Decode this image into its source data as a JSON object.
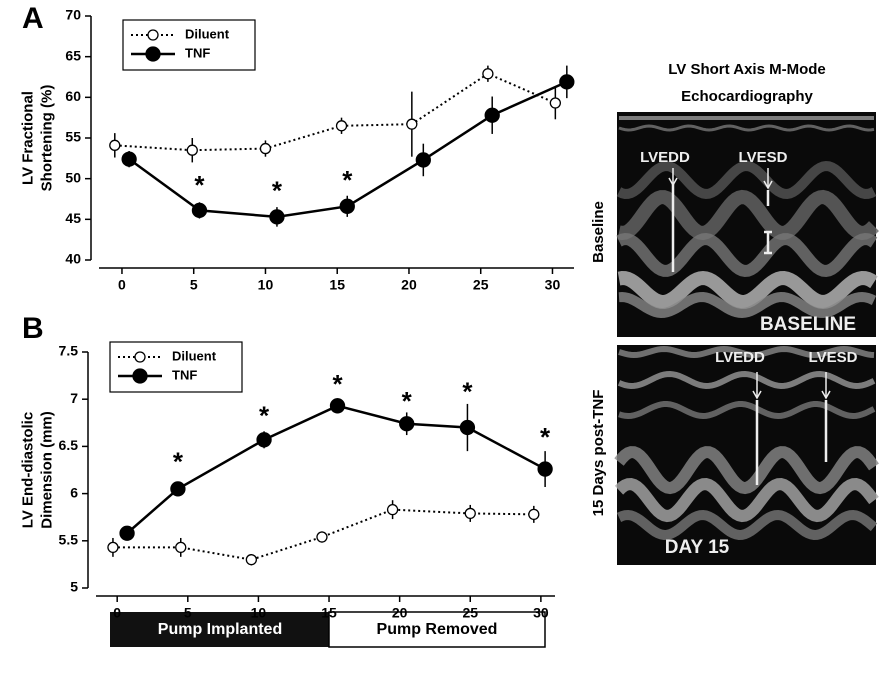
{
  "chart_data": [
    {
      "type": "line",
      "panel_label": "A",
      "ylabel": [
        "LV Fractional",
        "Shortening (%)"
      ],
      "xlim": [
        -1.6,
        31.5
      ],
      "xticks": [
        0,
        5,
        10,
        15,
        20,
        25,
        30
      ],
      "ylim": [
        40,
        70
      ],
      "yticks": [
        40,
        45,
        50,
        55,
        60,
        65,
        70
      ],
      "legend": "upper left",
      "series": [
        {
          "name": "Diluent",
          "color": "#000000",
          "style": "dotted",
          "marker": "open",
          "x": [
            -0.5,
            4.9,
            10,
            15.3,
            20.2,
            25.5,
            30.2
          ],
          "values": [
            54.1,
            53.5,
            53.7,
            56.5,
            56.7,
            62.9,
            59.3
          ],
          "errors": [
            1.5,
            1.5,
            1,
            1,
            4,
            1,
            2
          ]
        },
        {
          "name": "TNF",
          "color": "#000000",
          "style": "solid",
          "marker": "filled",
          "x": [
            0.5,
            5.4,
            10.8,
            15.7,
            21,
            25.8,
            31
          ],
          "values": [
            52.4,
            46.1,
            45.3,
            46.6,
            52.3,
            57.8,
            61.9
          ],
          "errors": [
            1,
            1,
            1.2,
            1.3,
            2,
            2.3,
            2
          ]
        }
      ],
      "annotations": [
        {
          "x": 5.4,
          "y": 49.7,
          "text": "*"
        },
        {
          "x": 10.8,
          "y": 49,
          "text": "*"
        },
        {
          "x": 15.7,
          "y": 50.3,
          "text": "*"
        }
      ]
    },
    {
      "type": "line",
      "panel_label": "B",
      "ylabel": [
        "LV End-diastolic",
        "Dimension (mm)"
      ],
      "xlim": [
        -1.5,
        31
      ],
      "xticks": [
        0,
        5,
        10,
        15,
        20,
        25,
        30
      ],
      "ylim": [
        5,
        7.5
      ],
      "yticks": [
        5,
        5.5,
        6,
        6.5,
        7,
        7.5
      ],
      "legend": "upper left",
      "series": [
        {
          "name": "Diluent",
          "color": "#000000",
          "style": "dotted",
          "marker": "open",
          "x": [
            -0.3,
            4.5,
            9.5,
            14.5,
            19.5,
            25,
            29.5
          ],
          "values": [
            5.43,
            5.43,
            5.3,
            5.54,
            5.83,
            5.79,
            5.78
          ],
          "errors": [
            0.1,
            0.1,
            0.06,
            0.06,
            0.1,
            0.09,
            0.09
          ]
        },
        {
          "name": "TNF",
          "color": "#000000",
          "style": "solid",
          "marker": "filled",
          "x": [
            0.7,
            4.3,
            10.4,
            15.6,
            20.5,
            24.8,
            30.3
          ],
          "values": [
            5.58,
            6.05,
            6.57,
            6.93,
            6.74,
            6.7,
            6.26
          ],
          "errors": [
            0.07,
            0.07,
            0.09,
            0.08,
            0.12,
            0.25,
            0.19
          ]
        }
      ],
      "annotations": [
        {
          "x": 4.3,
          "y": 6.38,
          "text": "*"
        },
        {
          "x": 10.4,
          "y": 6.87,
          "text": "*"
        },
        {
          "x": 15.6,
          "y": 7.2,
          "text": "*"
        },
        {
          "x": 20.5,
          "y": 7.02,
          "text": "*"
        },
        {
          "x": 24.8,
          "y": 7.12,
          "text": "*"
        },
        {
          "x": 30.3,
          "y": 6.64,
          "text": "*"
        }
      ]
    }
  ],
  "pump_bar": {
    "implanted": "Pump Implanted",
    "removed": "Pump Removed"
  },
  "echo": {
    "title": [
      "LV Short Axis M-Mode",
      "Echocardiography"
    ],
    "baseline": {
      "side_label": "Baseline",
      "lvedd": "LVEDD",
      "lvesd": "LVESD",
      "stamp": "BASELINE"
    },
    "day15": {
      "side_label": "15 Days post-TNF",
      "lvedd": "LVEDD",
      "lvesd": "LVESD",
      "stamp": "DAY 15"
    }
  }
}
